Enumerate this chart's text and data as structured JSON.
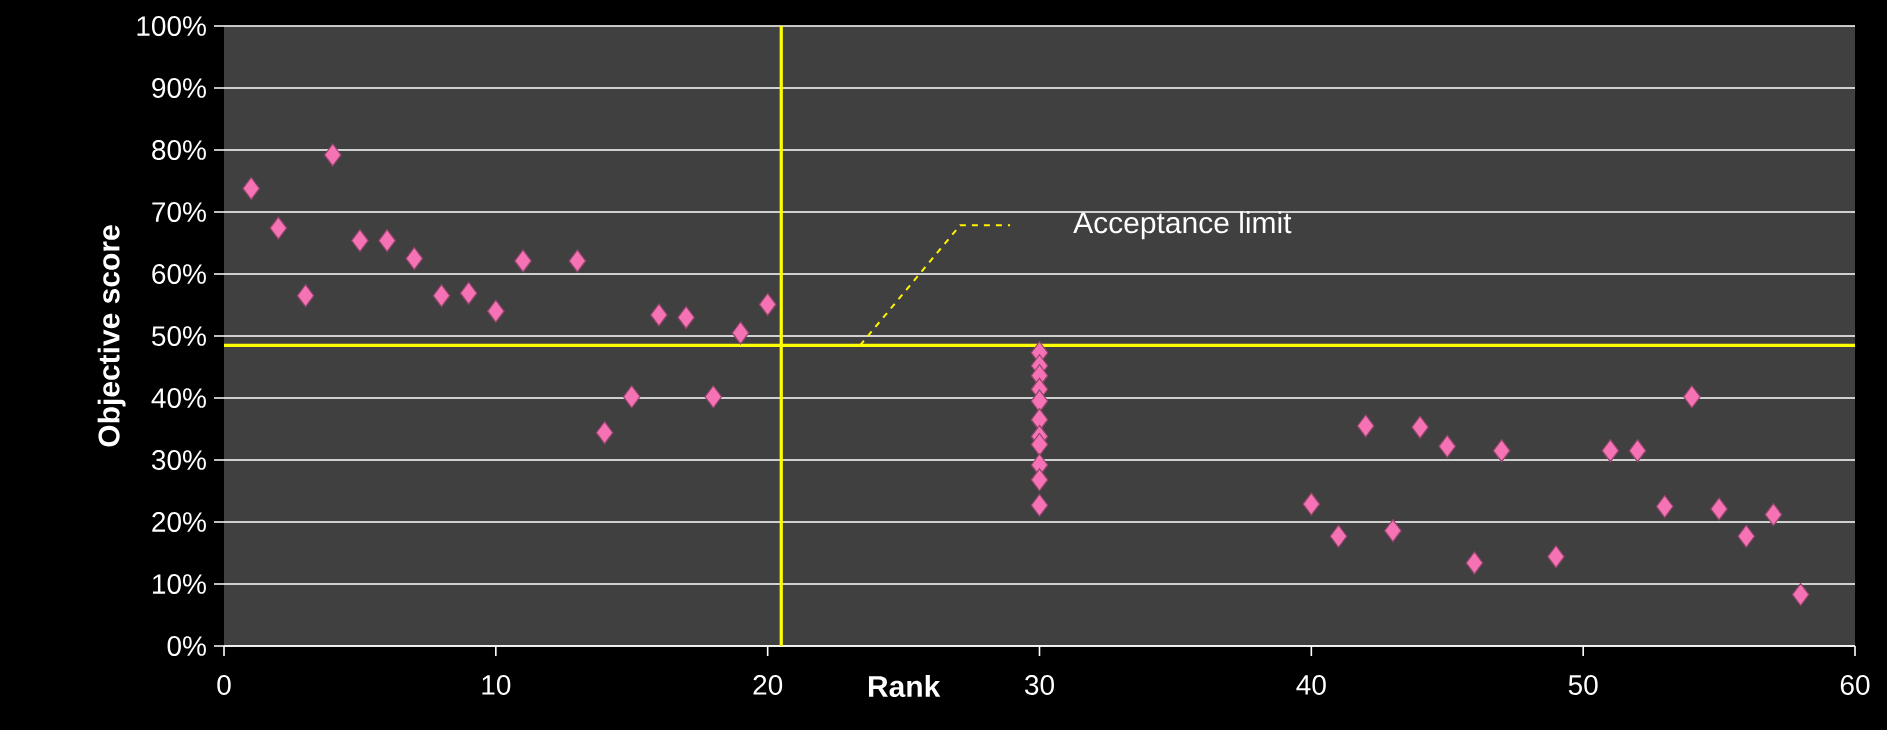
{
  "chart_data": {
    "type": "scatter",
    "xlabel": "Rank",
    "ylabel": "Objective score",
    "x": [
      1,
      2,
      3,
      4,
      5,
      6,
      7,
      8,
      9,
      10,
      11,
      13,
      14,
      15,
      16,
      17,
      18,
      19,
      20,
      30,
      30,
      30,
      30,
      30,
      30,
      30,
      30,
      30,
      30,
      30,
      40,
      41,
      42,
      43,
      44,
      45,
      46,
      47,
      49,
      51,
      52,
      53,
      54,
      55,
      56,
      57,
      58
    ],
    "series": [
      {
        "color": "#f572b4",
        "values": [
          73.8,
          67.4,
          56.5,
          79.2,
          65.4,
          65.4,
          62.5,
          56.5,
          56.9,
          54,
          62.1,
          62.1,
          34.4,
          40.2,
          53.4,
          53,
          40.2,
          50.5,
          55.1,
          47.3,
          45.2,
          43.6,
          41.4,
          39.5,
          36.5,
          33.8,
          32.5,
          29.2,
          26.8,
          22.7,
          22.9,
          17.7,
          35.5,
          18.6,
          35.3,
          32.2,
          13.4,
          31.5,
          14.4,
          31.5,
          31.5,
          22.5,
          40.2,
          22.1,
          17.7,
          21.2,
          8.3
        ]
      }
    ],
    "xlim": [
      0,
      60
    ],
    "xticks": [
      0,
      10,
      20,
      30,
      40,
      50,
      60
    ],
    "ylim": [
      0,
      100
    ],
    "yticks": [
      {
        "value": 0,
        "label": "0%"
      },
      {
        "value": 10,
        "label": "10%"
      },
      {
        "value": 20,
        "label": "20%"
      },
      {
        "value": 30,
        "label": "30%"
      },
      {
        "value": 40,
        "label": "40%"
      },
      {
        "value": 50,
        "label": "50%"
      },
      {
        "value": 60,
        "label": "60%"
      },
      {
        "value": 70,
        "label": "70%"
      },
      {
        "value": 80,
        "label": "80%"
      },
      {
        "value": 90,
        "label": "90%"
      },
      {
        "value": 100,
        "label": "100%"
      }
    ],
    "ref_lines": [
      {
        "axis": "x",
        "value": 20.5,
        "color": "#ffff00"
      },
      {
        "axis": "y",
        "value": 48.5,
        "color": "#ffff00"
      }
    ],
    "annotations": [
      "Acceptance limit"
    ],
    "grid": "y",
    "marker": "diamond"
  }
}
